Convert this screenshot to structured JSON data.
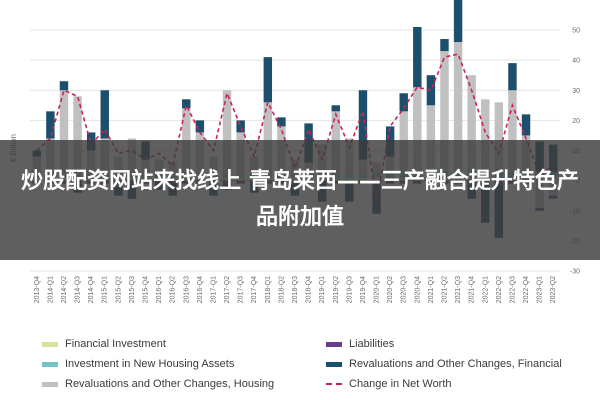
{
  "overlay": {
    "headline": "炒股配资网站来找线上 青岛莱西——三产融合提升特色产品附加值"
  },
  "colors": {
    "financial_investment": "#d8e3a0",
    "housing_investment": "#72c4c4",
    "reval_housing": "#c0c0c0",
    "liabilities": "#6a3e86",
    "reval_financial": "#1c4f6b",
    "net_worth": "#cc2255"
  },
  "chart_data": {
    "type": "bar",
    "ylabel": "€ Billion",
    "ylim": [
      -30,
      50
    ],
    "yticks": [
      50,
      40,
      30,
      20,
      10,
      0,
      -10,
      -20,
      -30
    ],
    "categories": [
      "2013-Q4",
      "2014-Q1",
      "2014-Q2",
      "2014-Q3",
      "2014-Q4",
      "2015-Q1",
      "2015-Q2",
      "2015-Q3",
      "2015-Q4",
      "2016-Q1",
      "2016-Q2",
      "2016-Q3",
      "2016-Q4",
      "2017-Q1",
      "2017-Q2",
      "2017-Q3",
      "2017-Q4",
      "2018-Q1",
      "2018-Q2",
      "2018-Q3",
      "2018-Q4",
      "2019-Q1",
      "2019-Q2",
      "2019-Q3",
      "2019-Q4",
      "2020-Q1",
      "2020-Q2",
      "2020-Q3",
      "2020-Q4",
      "2021-Q1",
      "2021-Q2",
      "2021-Q3",
      "2021-Q4",
      "2022-Q1",
      "2022-Q2",
      "2022-Q3",
      "2022-Q4",
      "2023-Q1",
      "2023-Q2"
    ],
    "series": [
      {
        "name": "Financial Investment",
        "key": "financial_investment",
        "values": [
          1,
          1,
          1,
          1,
          1,
          1,
          1,
          1,
          1,
          1,
          1,
          1,
          1,
          1,
          1,
          1,
          1,
          1,
          1,
          1,
          1,
          1,
          1,
          1,
          1,
          1,
          1,
          1,
          1,
          1,
          1,
          1,
          1,
          1,
          1,
          1,
          1,
          1,
          1
        ]
      },
      {
        "name": "Investment in New Housing Assets",
        "key": "housing_investment",
        "values": [
          1,
          1,
          1,
          1,
          1,
          1,
          1,
          1,
          1,
          1,
          1,
          1,
          1,
          1,
          1,
          1,
          1,
          1,
          1,
          1,
          1,
          1,
          1,
          1,
          1,
          2,
          2,
          2,
          2,
          2,
          2,
          2,
          2,
          2,
          2,
          2,
          2,
          2,
          2
        ]
      },
      {
        "name": "Revaluations and Other Changes, Housing",
        "key": "reval_housing",
        "values": [
          6,
          12,
          28,
          26,
          8,
          12,
          6,
          12,
          5,
          5,
          4,
          22,
          14,
          6,
          28,
          14,
          6,
          24,
          16,
          5,
          4,
          10,
          21,
          12,
          5,
          3,
          5,
          20,
          28,
          22,
          40,
          43,
          32,
          24,
          23,
          27,
          12,
          -9,
          -5
        ]
      },
      {
        "name": "Liabilities",
        "key": "liabilities",
        "values": [
          -1,
          -1,
          -1,
          -1,
          -1,
          -1,
          -1,
          -1,
          -1,
          -1,
          -1,
          -1,
          -1,
          -1,
          -1,
          -1,
          -1,
          -1,
          -1,
          -1,
          -1,
          -1,
          -1,
          -1,
          -1,
          -1,
          -1,
          -1,
          -1,
          -1,
          -1,
          -1,
          -1,
          -1,
          -1,
          -1,
          -1,
          -1,
          -1
        ]
      },
      {
        "name": "Revaluations and Other Changes, Financial",
        "key": "reval_financial",
        "values": [
          2,
          9,
          3,
          -3,
          6,
          16,
          -4,
          -5,
          6,
          -2,
          -4,
          3,
          4,
          -4,
          -2,
          4,
          -3,
          15,
          3,
          -4,
          13,
          -6,
          2,
          -6,
          23,
          -10,
          10,
          6,
          20,
          10,
          4,
          14,
          -5,
          -13,
          -18,
          9,
          7,
          10,
          9
        ]
      }
    ],
    "net_worth": {
      "name": "Change in Net Worth",
      "values": [
        10,
        14,
        30,
        28,
        12,
        17,
        9,
        10,
        7,
        9,
        5,
        25,
        16,
        10,
        29,
        18,
        8,
        26,
        17,
        4,
        17,
        7,
        22,
        11,
        23,
        -7,
        18,
        24,
        31,
        30,
        41,
        42,
        30,
        16,
        9,
        25,
        14,
        2,
        5
      ]
    },
    "legend_position": "bottom"
  }
}
